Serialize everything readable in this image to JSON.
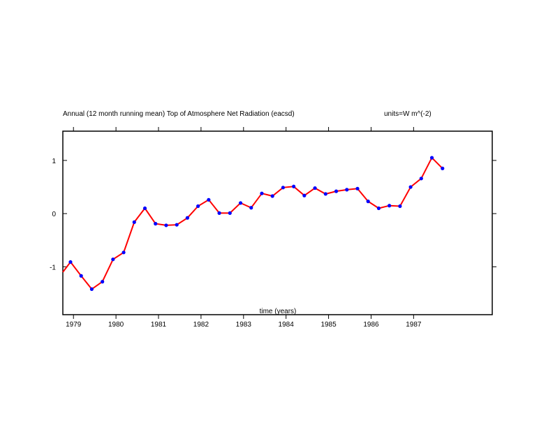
{
  "chart_data": {
    "type": "line",
    "title": "Annual (12 month running mean) Top of Atmosphere Net Radiation (eacsd)",
    "units": "units=W m^(-2)",
    "xlabel": "time (years)",
    "ylabel": "",
    "xlim": [
      1978.75,
      1988.85
    ],
    "ylim": [
      -1.9,
      1.55
    ],
    "x_ticks": [
      1979,
      1980,
      1981,
      1982,
      1983,
      1984,
      1985,
      1986,
      1987
    ],
    "x_tick_labels": [
      "1979",
      "1980",
      "1981",
      "1982",
      "1983",
      "1984",
      "1985",
      "1986",
      "1987"
    ],
    "y_ticks": [
      -1,
      0,
      1
    ],
    "y_tick_labels": [
      "-1",
      "0",
      "1"
    ],
    "grid": false,
    "line_color": "#ff0000",
    "marker_color": "#0000ff",
    "series": [
      {
        "x": [
          1978.75,
          1978.93,
          1979.18,
          1979.43,
          1979.68,
          1979.93,
          1980.18,
          1980.43,
          1980.68,
          1980.93,
          1981.18,
          1981.43,
          1981.68,
          1981.93,
          1982.18,
          1982.43,
          1982.68,
          1982.93,
          1983.18,
          1983.43,
          1983.68,
          1983.93,
          1984.18,
          1984.43,
          1984.68,
          1984.93,
          1985.18,
          1985.43,
          1985.68,
          1985.93,
          1986.18,
          1986.43,
          1986.68,
          1986.93,
          1987.18,
          1987.43,
          1987.68
        ],
        "y": [
          -1.1,
          -0.91,
          -1.17,
          -1.42,
          -1.28,
          -0.86,
          -0.73,
          -0.16,
          0.1,
          -0.19,
          -0.22,
          -0.21,
          -0.08,
          0.14,
          0.26,
          0.01,
          0.01,
          0.2,
          0.11,
          0.38,
          0.33,
          0.49,
          0.51,
          0.34,
          0.48,
          0.37,
          0.42,
          0.45,
          0.47,
          0.23,
          0.1,
          0.15,
          0.14,
          0.5,
          0.66,
          1.05,
          0.85
        ],
        "markers": [
          false,
          true,
          true,
          true,
          true,
          true,
          true,
          true,
          true,
          true,
          true,
          true,
          true,
          true,
          true,
          true,
          true,
          true,
          true,
          true,
          true,
          true,
          true,
          true,
          true,
          true,
          true,
          true,
          true,
          true,
          true,
          true,
          true,
          true,
          true,
          true,
          true
        ]
      }
    ]
  }
}
